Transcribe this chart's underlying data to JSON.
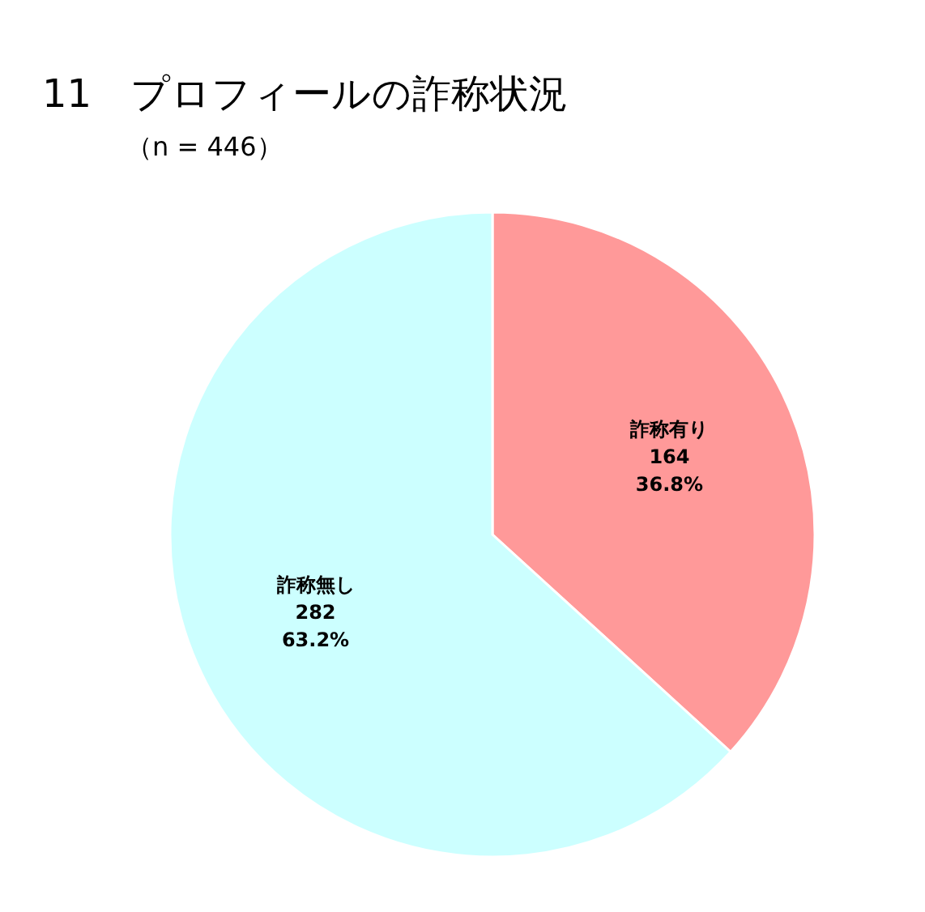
{
  "chart_data": {
    "type": "pie",
    "title": "11　プロフィールの詐称状況",
    "subtitle": "（n = 446）",
    "categories": [
      "詐称有り",
      "詐称無し"
    ],
    "values": [
      164,
      282
    ],
    "colors": [
      "#ff9999",
      "#ccffff"
    ],
    "value_labels": [
      "164\n36.8%",
      "282\n63.2%"
    ]
  }
}
